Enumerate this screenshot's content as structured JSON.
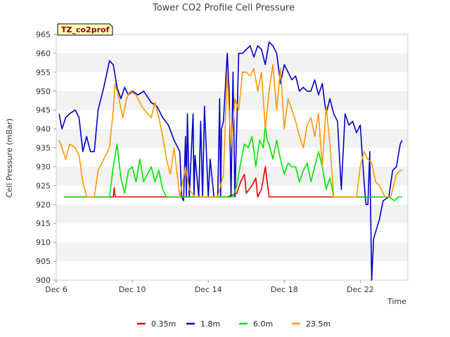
{
  "chart_data": {
    "type": "line",
    "title": "Tower CO2 Profile Cell Pressure",
    "xlabel": "Time",
    "ylabel": "Cell Pressure (mBar)",
    "badge": "TZ_co2prof",
    "x_unit": "day",
    "xlim": [
      6,
      24.5
    ],
    "ylim": [
      900,
      965
    ],
    "x_ticks": [
      {
        "value": 6,
        "label": "Dec 6"
      },
      {
        "value": 10,
        "label": "Dec 10"
      },
      {
        "value": 14,
        "label": "Dec 14"
      },
      {
        "value": 18,
        "label": "Dec 18"
      },
      {
        "value": 22,
        "label": "Dec 22"
      }
    ],
    "y_ticks": [
      900,
      905,
      910,
      915,
      920,
      925,
      930,
      935,
      940,
      945,
      950,
      955,
      960,
      965
    ],
    "grid": "horizontal-bands",
    "legend_position": "bottom",
    "colors": {
      "0.35m": "#e60000",
      "1.8m": "#0000cc",
      "6.0m": "#00e600",
      "23.5m": "#ff9900"
    },
    "series": [
      {
        "name": "0.35m",
        "color": "#e60000",
        "x": [
          6.4,
          8.0,
          9.0,
          9.05,
          9.1,
          10.0,
          11.0,
          12.0,
          13.0,
          14.0,
          14.5,
          15.0,
          15.5,
          15.7,
          15.9,
          16.0,
          16.3,
          16.5,
          16.6,
          16.8,
          17.0,
          17.2,
          17.5,
          18.0,
          19.0,
          20.0,
          21.0,
          22.0,
          23.0
        ],
        "values": [
          922,
          922,
          922,
          924.5,
          922,
          922,
          922,
          922,
          922,
          922,
          922,
          922,
          923,
          926,
          928,
          923,
          925,
          927,
          922,
          924,
          930,
          922,
          922,
          922,
          922,
          922,
          922,
          922,
          922
        ]
      },
      {
        "name": "1.8m",
        "color": "#0000cc",
        "x": [
          6.15,
          6.3,
          6.5,
          6.7,
          7.0,
          7.2,
          7.4,
          7.6,
          7.8,
          8.0,
          8.2,
          8.5,
          8.8,
          9.0,
          9.2,
          9.4,
          9.6,
          9.8,
          10.0,
          10.3,
          10.6,
          11.0,
          11.3,
          11.6,
          11.9,
          12.2,
          12.5,
          12.6,
          12.7,
          12.8,
          12.85,
          12.9,
          13.0,
          13.2,
          13.25,
          13.3,
          13.5,
          13.6,
          13.7,
          13.8,
          14.0,
          14.1,
          14.3,
          14.5,
          14.6,
          14.65,
          14.7,
          14.8,
          15.0,
          15.1,
          15.2,
          15.3,
          15.4,
          15.6,
          15.8,
          16.0,
          16.2,
          16.4,
          16.6,
          16.8,
          17.0,
          17.2,
          17.4,
          17.6,
          17.8,
          18.0,
          18.2,
          18.4,
          18.6,
          18.8,
          19.0,
          19.2,
          19.4,
          19.6,
          19.8,
          20.0,
          20.2,
          20.4,
          20.6,
          20.8,
          21.0,
          21.2,
          21.4,
          21.6,
          21.8,
          22.0,
          22.2,
          22.3,
          22.4,
          22.5,
          22.6,
          22.7,
          23.0,
          23.2,
          23.5,
          23.7,
          23.9,
          24.1,
          24.2
        ],
        "values": [
          944,
          940,
          943,
          944,
          945,
          943,
          934,
          938,
          934,
          934,
          945,
          951,
          958,
          957,
          951,
          948,
          951,
          949,
          950,
          949,
          950,
          947,
          946,
          943,
          941,
          937,
          934,
          922,
          921,
          938,
          922,
          944,
          922,
          944,
          922,
          933,
          922,
          942,
          922,
          946,
          922,
          932,
          922,
          922,
          948,
          922,
          940,
          942,
          960,
          950,
          922,
          955,
          922,
          960,
          960,
          961,
          962,
          959,
          962,
          961,
          957,
          963,
          962,
          960,
          952,
          957,
          955,
          953,
          954,
          950,
          951,
          950,
          950,
          953,
          949,
          952,
          944,
          948,
          944,
          942,
          924,
          944,
          941,
          942,
          939,
          941,
          926,
          920,
          920,
          934,
          900,
          911,
          916,
          921,
          922,
          929,
          930,
          936,
          937
        ]
      },
      {
        "name": "6.0m",
        "color": "#00e600",
        "x": [
          6.4,
          7.0,
          8.0,
          8.8,
          9.0,
          9.2,
          9.4,
          9.6,
          9.8,
          10.0,
          10.2,
          10.4,
          10.6,
          10.8,
          11.0,
          11.2,
          11.4,
          11.6,
          11.8,
          12.0,
          13.0,
          14.0,
          15.0,
          15.3,
          15.5,
          15.7,
          15.9,
          16.1,
          16.3,
          16.5,
          16.7,
          16.9,
          17.0,
          17.1,
          17.2,
          17.4,
          17.6,
          17.8,
          18.0,
          18.2,
          18.4,
          18.6,
          18.8,
          19.0,
          19.2,
          19.4,
          19.6,
          19.8,
          20.0,
          20.2,
          20.4,
          20.6,
          21.0,
          21.5,
          22.0,
          22.5,
          23.0,
          23.5,
          23.8,
          24.0,
          24.2
        ],
        "values": [
          922,
          922,
          922,
          922,
          930,
          936,
          927,
          923,
          929,
          930,
          926,
          932,
          926,
          928,
          930,
          926,
          929,
          924,
          922,
          922,
          922,
          922,
          922,
          922,
          925,
          931,
          936,
          935,
          938,
          930,
          937,
          935,
          941,
          937,
          936,
          932,
          937,
          932,
          928,
          931,
          930,
          930,
          926,
          929,
          931,
          926,
          930,
          934,
          930,
          924,
          927,
          922,
          922,
          922,
          922,
          922,
          922,
          922,
          921,
          922,
          922
        ]
      },
      {
        "name": "23.5m",
        "color": "#ff9900",
        "x": [
          6.15,
          6.3,
          6.5,
          6.7,
          7.0,
          7.2,
          7.4,
          7.6,
          7.8,
          8.0,
          8.2,
          8.4,
          8.6,
          8.8,
          9.0,
          9.1,
          9.3,
          9.5,
          9.7,
          9.9,
          10.2,
          10.5,
          10.8,
          11.0,
          11.2,
          11.4,
          11.6,
          11.8,
          12.0,
          12.2,
          12.5,
          12.8,
          13.0,
          13.3,
          13.6,
          14.0,
          14.3,
          14.5,
          14.8,
          15.0,
          15.2,
          15.4,
          15.6,
          15.8,
          16.0,
          16.2,
          16.4,
          16.6,
          16.8,
          17.0,
          17.2,
          17.4,
          17.6,
          17.8,
          18.0,
          18.2,
          18.4,
          18.6,
          18.8,
          19.0,
          19.2,
          19.4,
          19.6,
          19.8,
          20.0,
          20.2,
          20.4,
          20.6,
          20.8,
          21.0,
          21.3,
          21.6,
          21.8,
          22.0,
          22.2,
          22.4,
          22.6,
          22.8,
          23.0,
          23.3,
          23.6,
          23.9,
          24.1,
          24.2
        ],
        "values": [
          937,
          935,
          932,
          936,
          935,
          933,
          926,
          922,
          922,
          922,
          929,
          931,
          933,
          935,
          945,
          952,
          948,
          943,
          948,
          950,
          949,
          946,
          944,
          943,
          947,
          943,
          938,
          932,
          928,
          935,
          922,
          930,
          924,
          922,
          922,
          922,
          922,
          922,
          928,
          955,
          935,
          948,
          945,
          955,
          955,
          954,
          956,
          950,
          955,
          940,
          950,
          957,
          945,
          956,
          940,
          948,
          945,
          942,
          938,
          935,
          941,
          943,
          938,
          944,
          930,
          946,
          936,
          922,
          922,
          922,
          922,
          922,
          922,
          930,
          934,
          932,
          931,
          926,
          925,
          922,
          922,
          928,
          929,
          929
        ]
      }
    ]
  }
}
